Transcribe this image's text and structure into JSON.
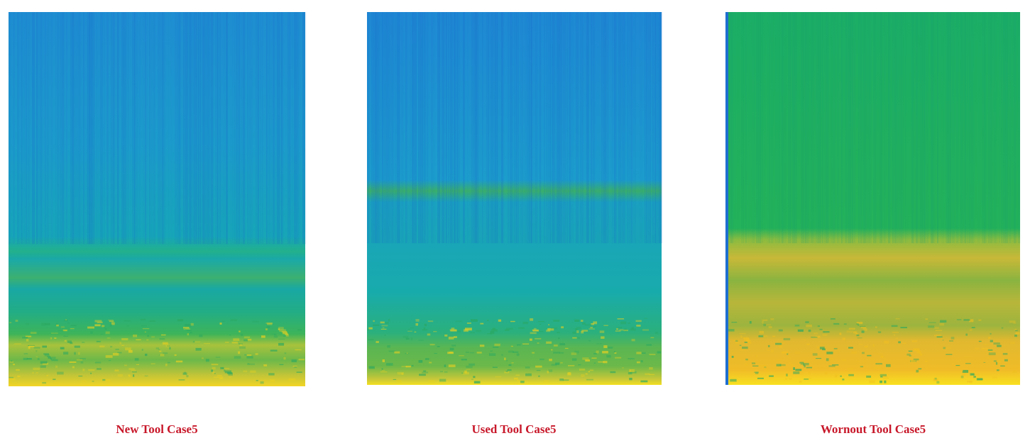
{
  "panels": [
    {
      "caption": "New Tool Case5"
    },
    {
      "caption": "Used Tool Case5"
    },
    {
      "caption": "Wornout Tool Case5"
    }
  ]
}
